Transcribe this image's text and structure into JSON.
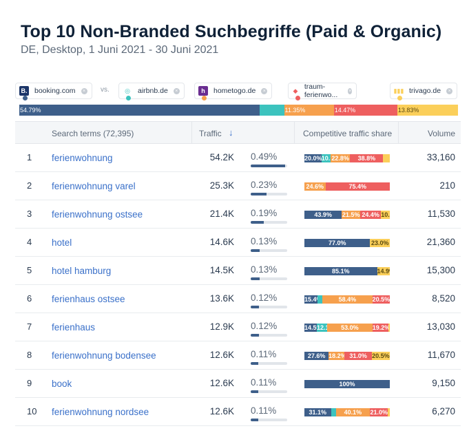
{
  "header": {
    "title": "Top 10 Non-Branded Suchbegriffe (Paid & Organic)",
    "subtitle": "DE, Desktop, 1 Juni 2021 - 30 Juni 2021"
  },
  "colors": {
    "booking": "#3e5f8a",
    "airbnb": "#3cc3be",
    "hometogo": "#f6a04d",
    "traum": "#ee5f5f",
    "trivago": "#fbcf5a"
  },
  "legend": {
    "vs": "vs.",
    "sites": [
      {
        "name": "booking.com",
        "logo": "B.",
        "logo_bg": "#1b3568",
        "dot": "#3e5f8a"
      },
      {
        "name": "airbnb.de",
        "logo": "◎",
        "logo_bg": "#ffffff",
        "dot": "#3cc3be"
      },
      {
        "name": "hometogo.de",
        "logo": "h",
        "logo_bg": "#6a2d91",
        "dot": "#f6a04d"
      },
      {
        "name": "traum-ferienwo...",
        "logo": "◆",
        "logo_bg": "#ffffff",
        "dot": "#ee5f5f"
      },
      {
        "name": "trivago.de",
        "logo": "▮▮▮",
        "logo_bg": "#ffffff",
        "dot": "#fbcf5a"
      }
    ]
  },
  "share_bar": [
    {
      "label": "54.79%",
      "value": 54.79,
      "color": "#3e5f8a"
    },
    {
      "label": "",
      "value": 5.6,
      "color": "#3cc3be"
    },
    {
      "label": "11.35%",
      "value": 11.35,
      "color": "#f6a04d"
    },
    {
      "label": "14.47%",
      "value": 14.47,
      "color": "#ee5f5f"
    },
    {
      "label": "13.83%",
      "value": 13.83,
      "color": "#fbcf5a"
    }
  ],
  "table": {
    "columns": {
      "search_terms": "Search terms (72,395)",
      "traffic": "Traffic",
      "sort_icon": "↓",
      "cts": "Competitive traffic share",
      "volume": "Volume"
    },
    "rows": [
      {
        "num": "1",
        "term": "ferienwohnung",
        "traffic": "54.2K",
        "pct": "0.49%",
        "pct_value": 0.49,
        "volume": "33,160",
        "cts": [
          {
            "v": 20.0,
            "l": "20.0%",
            "c": "#3e5f8a"
          },
          {
            "v": 10.7,
            "l": "10.7%",
            "c": "#3cc3be"
          },
          {
            "v": 22.8,
            "l": "22.8%",
            "c": "#f6a04d"
          },
          {
            "v": 38.8,
            "l": "38.8%",
            "c": "#ee5f5f"
          },
          {
            "v": 7.7,
            "l": "",
            "c": "#fbcf5a"
          }
        ]
      },
      {
        "num": "2",
        "term": "ferienwohnung varel",
        "traffic": "25.3K",
        "pct": "0.23%",
        "pct_value": 0.23,
        "volume": "210",
        "cts": [
          {
            "v": 24.6,
            "l": "24.6%",
            "c": "#f6a04d"
          },
          {
            "v": 75.4,
            "l": "75.4%",
            "c": "#ee5f5f"
          }
        ]
      },
      {
        "num": "3",
        "term": "ferienwohnung ostsee",
        "traffic": "21.4K",
        "pct": "0.19%",
        "pct_value": 0.19,
        "volume": "11,530",
        "cts": [
          {
            "v": 43.9,
            "l": "43.9%",
            "c": "#3e5f8a"
          },
          {
            "v": 21.5,
            "l": "21.5%",
            "c": "#f6a04d"
          },
          {
            "v": 24.4,
            "l": "24.4%",
            "c": "#ee5f5f"
          },
          {
            "v": 10.3,
            "l": "10.3%",
            "c": "#fbcf5a"
          }
        ]
      },
      {
        "num": "4",
        "term": "hotel",
        "traffic": "14.6K",
        "pct": "0.13%",
        "pct_value": 0.13,
        "volume": "21,360",
        "cts": [
          {
            "v": 77.0,
            "l": "77.0%",
            "c": "#3e5f8a"
          },
          {
            "v": 23.0,
            "l": "23.0%",
            "c": "#fbcf5a"
          }
        ]
      },
      {
        "num": "5",
        "term": "hotel hamburg",
        "traffic": "14.5K",
        "pct": "0.13%",
        "pct_value": 0.13,
        "volume": "15,300",
        "cts": [
          {
            "v": 85.1,
            "l": "85.1%",
            "c": "#3e5f8a"
          },
          {
            "v": 14.9,
            "l": "14.9%",
            "c": "#fbcf5a"
          }
        ]
      },
      {
        "num": "6",
        "term": "ferienhaus ostsee",
        "traffic": "13.6K",
        "pct": "0.12%",
        "pct_value": 0.12,
        "volume": "8,520",
        "cts": [
          {
            "v": 15.4,
            "l": "15.4%",
            "c": "#3e5f8a"
          },
          {
            "v": 5.7,
            "l": "",
            "c": "#3cc3be"
          },
          {
            "v": 58.4,
            "l": "58.4%",
            "c": "#f6a04d"
          },
          {
            "v": 20.5,
            "l": "20.5%",
            "c": "#ee5f5f"
          }
        ]
      },
      {
        "num": "7",
        "term": "ferienhaus",
        "traffic": "12.9K",
        "pct": "0.12%",
        "pct_value": 0.12,
        "volume": "13,030",
        "cts": [
          {
            "v": 14.5,
            "l": "14.5%",
            "c": "#3e5f8a"
          },
          {
            "v": 12.1,
            "l": "12.1%",
            "c": "#3cc3be"
          },
          {
            "v": 53.0,
            "l": "53.0%",
            "c": "#f6a04d"
          },
          {
            "v": 19.2,
            "l": "19.2%",
            "c": "#ee5f5f"
          },
          {
            "v": 1.2,
            "l": "",
            "c": "#fbcf5a"
          }
        ]
      },
      {
        "num": "8",
        "term": "ferienwohnung bodensee",
        "traffic": "12.6K",
        "pct": "0.11%",
        "pct_value": 0.11,
        "volume": "11,670",
        "cts": [
          {
            "v": 27.6,
            "l": "27.6%",
            "c": "#3e5f8a"
          },
          {
            "v": 18.2,
            "l": "18.2%",
            "c": "#f6a04d"
          },
          {
            "v": 31.0,
            "l": "31.0%",
            "c": "#ee5f5f"
          },
          {
            "v": 20.5,
            "l": "20.5%",
            "c": "#fbcf5a"
          }
        ]
      },
      {
        "num": "9",
        "term": "book",
        "traffic": "12.6K",
        "pct": "0.11%",
        "pct_value": 0.11,
        "volume": "9,150",
        "cts": [
          {
            "v": 100,
            "l": "100%",
            "c": "#3e5f8a"
          }
        ]
      },
      {
        "num": "10",
        "term": "ferienwohnung nordsee",
        "traffic": "12.6K",
        "pct": "0.11%",
        "pct_value": 0.11,
        "volume": "6,270",
        "cts": [
          {
            "v": 31.1,
            "l": "31.1%",
            "c": "#3e5f8a"
          },
          {
            "v": 5.6,
            "l": "",
            "c": "#3cc3be"
          },
          {
            "v": 40.1,
            "l": "40.1%",
            "c": "#f6a04d"
          },
          {
            "v": 21.0,
            "l": "21.0%",
            "c": "#ee5f5f"
          },
          {
            "v": 2.2,
            "l": "",
            "c": "#fbcf5a"
          }
        ]
      }
    ]
  }
}
